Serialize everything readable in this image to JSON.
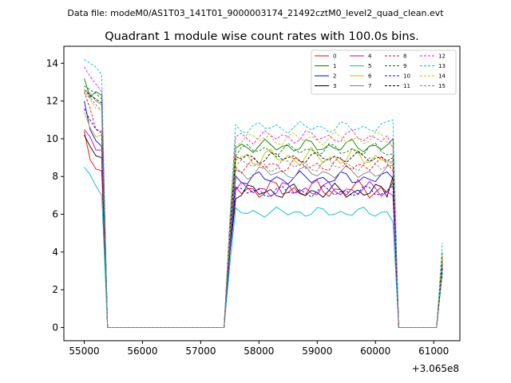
{
  "header": {
    "data_file": "Data file: modeM0/AS1T03_141T01_9000003174_21492cztM0_level2_quad_clean.evt"
  },
  "chart_data": {
    "type": "line",
    "title": "Quadrant 1 module wise count rates with 100.0s bins.",
    "xlabel": "",
    "ylabel": "",
    "x_offset_label": "+3.065e8",
    "xlim": [
      54650,
      61450
    ],
    "ylim": [
      -0.7,
      14.9
    ],
    "x_ticks": [
      55000,
      56000,
      57000,
      58000,
      59000,
      60000,
      61000
    ],
    "y_ticks": [
      0,
      2,
      4,
      6,
      8,
      10,
      12,
      14
    ],
    "grid": false,
    "legend_position": "top-right",
    "legend_columns": 4,
    "segments": [
      {
        "start": 55000,
        "step": 100,
        "n": 14
      },
      {
        "start": 57400,
        "step": 100,
        "n": 31
      },
      {
        "start": 61150,
        "step": 0,
        "n": 1
      }
    ],
    "last_value": [
      3.5,
      3.8,
      3.2,
      3.6,
      3.4,
      2.9,
      3.6,
      3.3,
      3.7,
      4.0,
      3.1,
      3.4,
      3.5,
      4.5,
      3.8,
      3.3
    ],
    "series": [
      {
        "name": "0",
        "color": "#ff0000",
        "dash": "solid",
        "start": [
          10.4,
          8.9,
          8.4,
          8.3
        ],
        "plateau": 7.3,
        "jitter": 0.55,
        "end": 7.7
      },
      {
        "name": "1",
        "color": "#008000",
        "dash": "solid",
        "start": [
          13.2,
          12.2,
          12.5,
          12.3
        ],
        "plateau": 9.6,
        "jitter": 0.4,
        "end": 10.0
      },
      {
        "name": "2",
        "color": "#0000ff",
        "dash": "solid",
        "start": [
          12.0,
          10.5,
          9.9,
          9.6
        ],
        "plateau": 7.9,
        "jitter": 0.4,
        "end": 7.9
      },
      {
        "name": "3",
        "color": "#000000",
        "dash": "solid",
        "start": [
          10.2,
          9.6,
          9.1,
          9.0
        ],
        "plateau": 7.2,
        "jitter": 0.45,
        "end": 8.0
      },
      {
        "name": "4",
        "color": "#bf00bf",
        "dash": "solid",
        "start": [
          10.5,
          10.1,
          9.4,
          9.4
        ],
        "plateau": 7.3,
        "jitter": 0.45,
        "end": 7.0
      },
      {
        "name": "5",
        "color": "#00bfbf",
        "dash": "solid",
        "start": [
          8.5,
          8.1,
          7.5,
          7.0
        ],
        "plateau": 6.1,
        "jitter": 0.3,
        "end": 5.6
      },
      {
        "name": "6",
        "color": "#bfbf00",
        "dash": "solid",
        "start": [
          11.4,
          10.6,
          10.1,
          10.2
        ],
        "plateau": 9.0,
        "jitter": 0.55,
        "end": 8.8
      },
      {
        "name": "7",
        "color": "#808080",
        "dash": "solid",
        "start": [
          12.6,
          12.4,
          12.0,
          11.8
        ],
        "plateau": 8.2,
        "jitter": 0.4,
        "end": 8.6
      },
      {
        "name": "8",
        "color": "#ff0000",
        "dash": "dashed",
        "start": [
          12.5,
          11.6,
          10.5,
          10.4
        ],
        "plateau": 8.6,
        "jitter": 0.45,
        "end": 8.3
      },
      {
        "name": "9",
        "color": "#008000",
        "dash": "dashed",
        "start": [
          12.8,
          12.6,
          12.4,
          12.1
        ],
        "plateau": 9.4,
        "jitter": 0.4,
        "end": 9.2
      },
      {
        "name": "10",
        "color": "#0000ff",
        "dash": "dashed",
        "start": [
          11.6,
          11.0,
          10.5,
          10.3
        ],
        "plateau": 7.2,
        "jitter": 0.35,
        "end": 7.5
      },
      {
        "name": "11",
        "color": "#000000",
        "dash": "dashed",
        "start": [
          12.6,
          12.3,
          12.1,
          11.9
        ],
        "plateau": 9.0,
        "jitter": 0.35,
        "end": 9.0
      },
      {
        "name": "12",
        "color": "#ff00ff",
        "dash": "dashed",
        "start": [
          13.8,
          13.3,
          12.9,
          12.5
        ],
        "plateau": 10.1,
        "jitter": 0.4,
        "end": 9.5
      },
      {
        "name": "13",
        "color": "#00bfbf",
        "dash": "dashed",
        "start": [
          14.2,
          14.0,
          13.8,
          13.4
        ],
        "plateau": 10.6,
        "jitter": 0.35,
        "end": 11.0
      },
      {
        "name": "14",
        "color": "#bfbf00",
        "dash": "dashed",
        "start": [
          12.6,
          12.1,
          11.6,
          11.5
        ],
        "plateau": 10.0,
        "jitter": 0.4,
        "end": 9.6
      },
      {
        "name": "15",
        "color": "#808080",
        "dash": "dashed",
        "start": [
          12.4,
          12.2,
          11.8,
          11.5
        ],
        "plateau": 8.6,
        "jitter": 0.4,
        "end": 8.8
      }
    ]
  }
}
